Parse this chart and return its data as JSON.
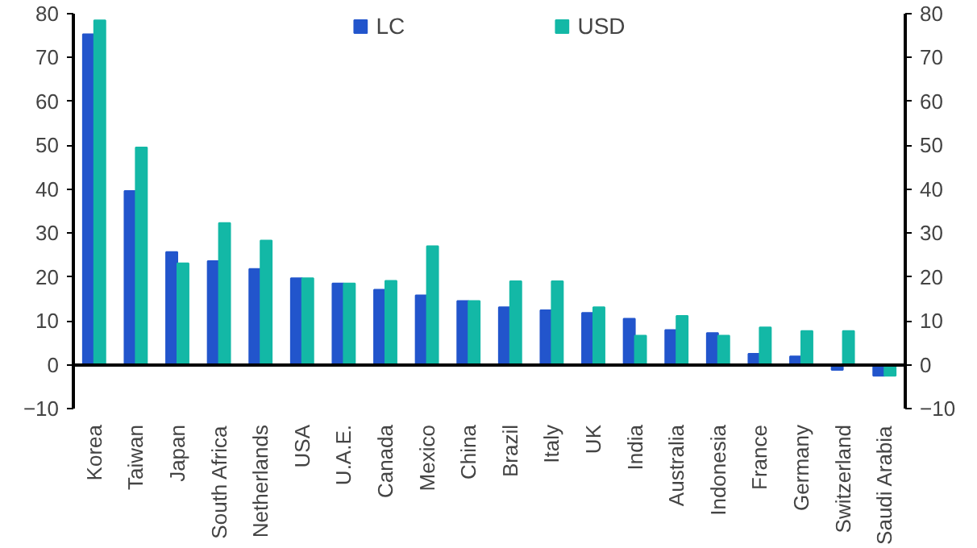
{
  "chart_data": {
    "type": "bar",
    "categories": [
      "Korea",
      "Taiwan",
      "Japan",
      "South Africa",
      "Netherlands",
      "USA",
      "U.A.E.",
      "Canada",
      "Mexico",
      "China",
      "Brazil",
      "Italy",
      "UK",
      "India",
      "Australia",
      "Indonesia",
      "France",
      "Germany",
      "Switzerland",
      "Saudi Arabia"
    ],
    "series": [
      {
        "name": "LC",
        "color": "#2255cc",
        "values": [
          75.3,
          39.6,
          25.7,
          23.6,
          21.8,
          19.7,
          18.5,
          17.1,
          15.8,
          14.5,
          13.1,
          12.4,
          11.8,
          10.5,
          7.9,
          7.2,
          2.5,
          1.9,
          -1.2,
          -2.5
        ]
      },
      {
        "name": "USD",
        "color": "#13b8a6",
        "values": [
          78.5,
          49.5,
          23.1,
          32.3,
          28.3,
          19.7,
          18.5,
          19.1,
          27.0,
          14.5,
          19.0,
          19.0,
          13.1,
          6.6,
          11.1,
          6.6,
          8.5,
          7.7,
          7.7,
          -2.5
        ]
      }
    ],
    "ylim": [
      -10,
      80
    ],
    "yticks": [
      -10,
      0,
      10,
      20,
      30,
      40,
      50,
      60,
      70,
      80
    ],
    "y2lim": [
      -10,
      80
    ],
    "y2ticks": [
      -10,
      0,
      10,
      20,
      30,
      40,
      50,
      60,
      70,
      80
    ],
    "legend": "top"
  }
}
